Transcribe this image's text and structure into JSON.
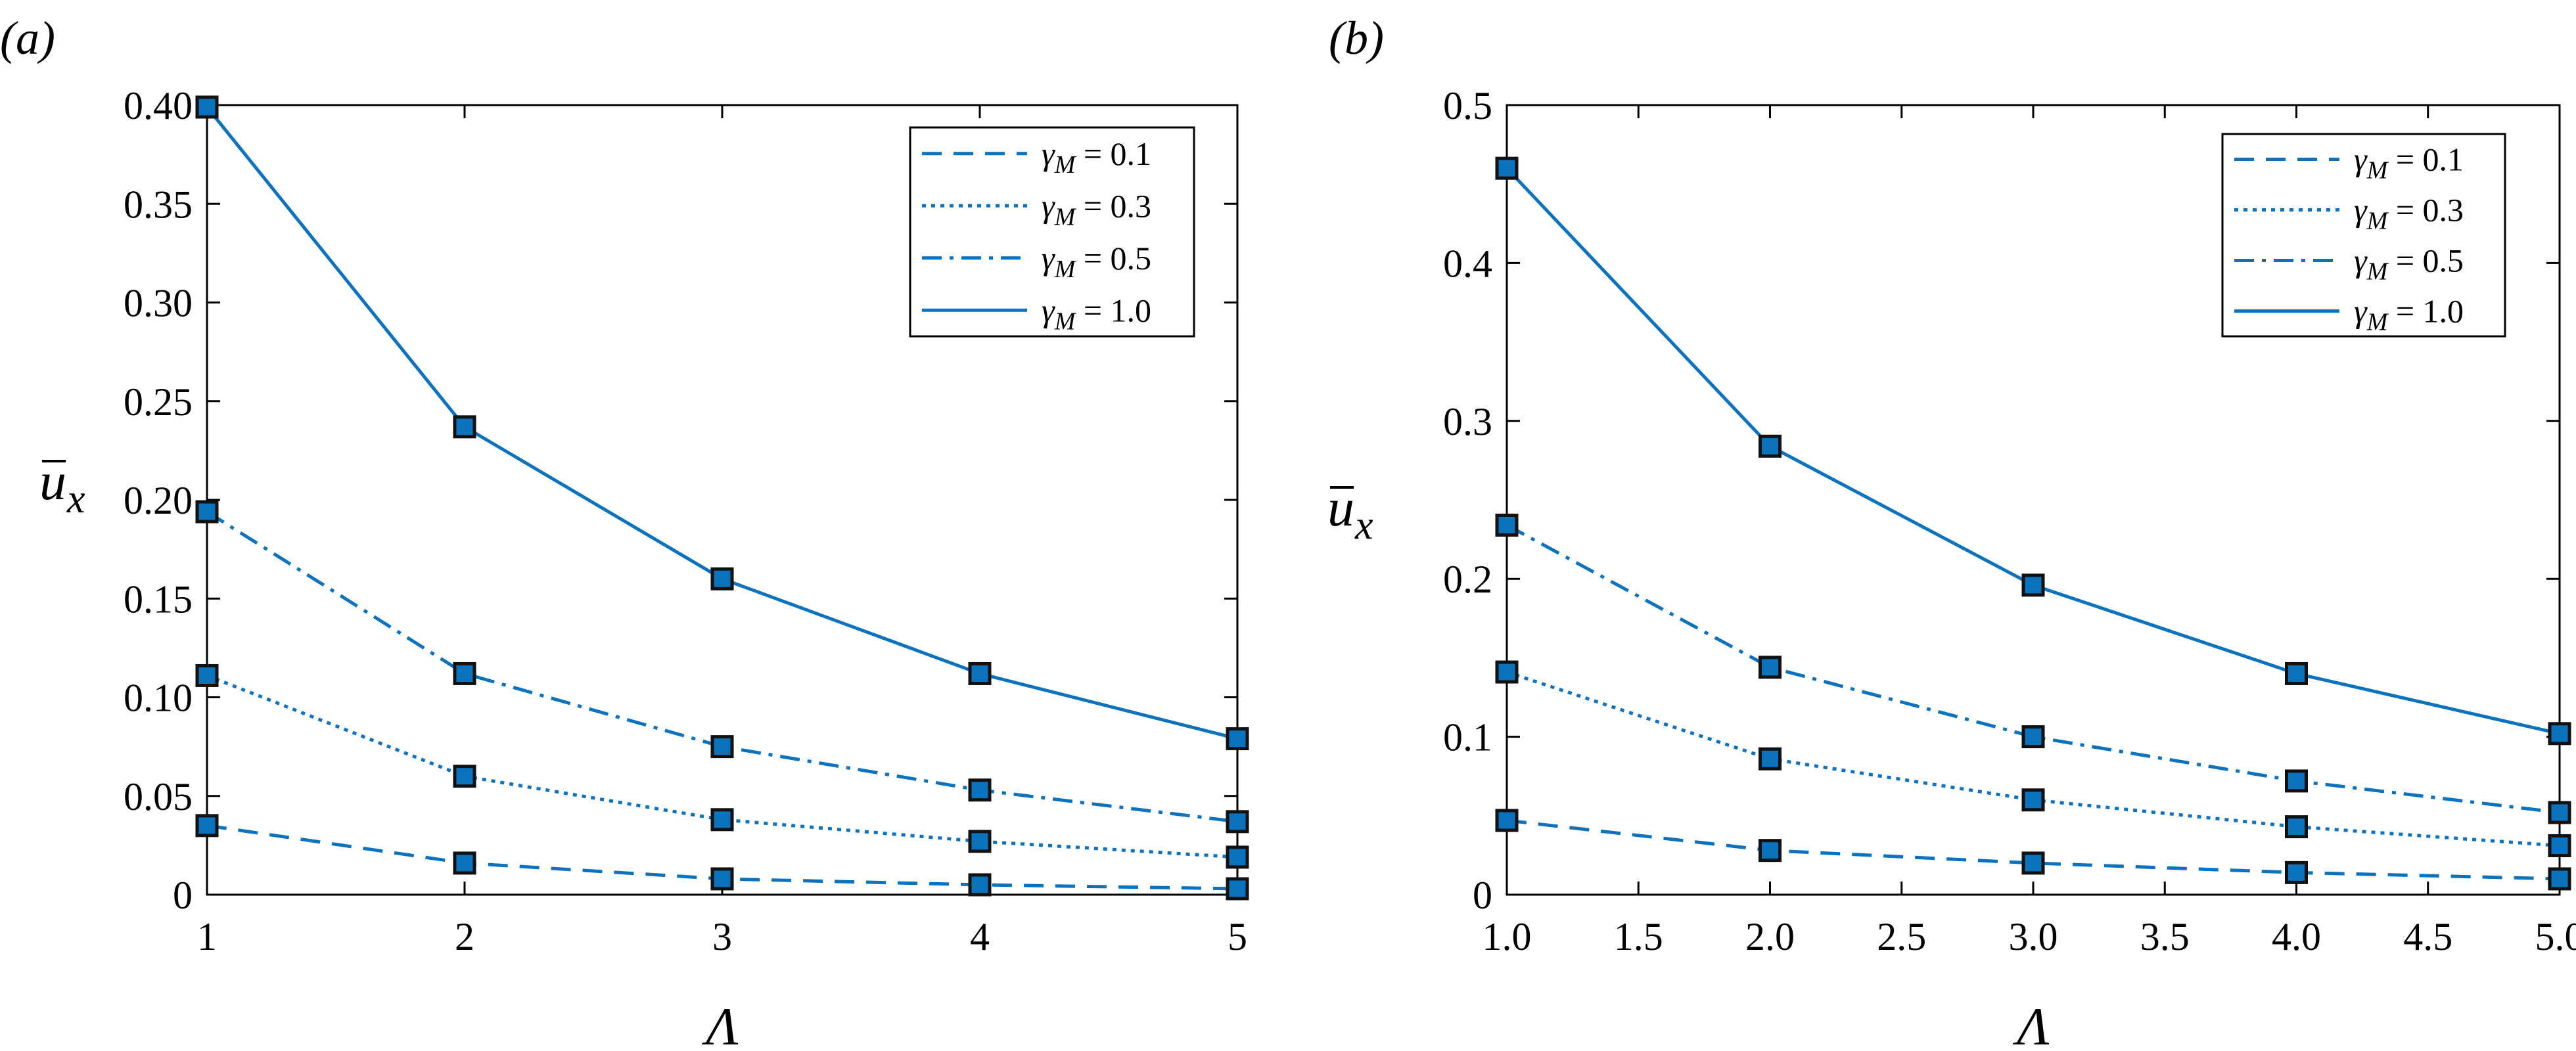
{
  "colors": {
    "series": "#0B72BD",
    "marker_fill": "#0B72BD",
    "marker_edge": "#111111",
    "axes": "#000000"
  },
  "panels": [
    {
      "panel_label": "(a)",
      "xlabel": "Λ",
      "ylabel_base": "u",
      "ylabel_sub": "x",
      "x_tick_labels": [
        "1",
        "2",
        "3",
        "4",
        "5"
      ],
      "y_tick_labels": [
        "0",
        "0.05",
        "0.10",
        "0.15",
        "0.20",
        "0.25",
        "0.30",
        "0.35",
        "0.40"
      ],
      "legend": [
        {
          "prefix": "γ",
          "sub": "M",
          "suffix": " = 0.1"
        },
        {
          "prefix": "γ",
          "sub": "M",
          "suffix": " = 0.3"
        },
        {
          "prefix": "γ",
          "sub": "M",
          "suffix": " = 0.5"
        },
        {
          "prefix": "γ",
          "sub": "M",
          "suffix": " = 1.0"
        }
      ]
    },
    {
      "panel_label": "(b)",
      "xlabel": "Λ",
      "ylabel_base": "u",
      "ylabel_sub": "x",
      "x_tick_labels": [
        "1.0",
        "1.5",
        "2.0",
        "2.5",
        "3.0",
        "3.5",
        "4.0",
        "4.5",
        "5.0"
      ],
      "y_tick_labels": [
        "0",
        "0.1",
        "0.2",
        "0.3",
        "0.4",
        "0.5"
      ],
      "legend": [
        {
          "prefix": "γ",
          "sub": "M",
          "suffix": " = 0.1"
        },
        {
          "prefix": "γ",
          "sub": "M",
          "suffix": " = 0.3"
        },
        {
          "prefix": "γ",
          "sub": "M",
          "suffix": " = 0.5"
        },
        {
          "prefix": "γ",
          "sub": "M",
          "suffix": " = 1.0"
        }
      ]
    }
  ],
  "chart_data": [
    {
      "type": "line",
      "title": "(a)",
      "xlabel": "Λ",
      "ylabel": "ū_x",
      "xlim": [
        1,
        5
      ],
      "ylim": [
        0,
        0.4
      ],
      "x_ticks": [
        1,
        2,
        3,
        4,
        5
      ],
      "y_ticks": [
        0,
        0.05,
        0.1,
        0.15,
        0.2,
        0.25,
        0.3,
        0.35,
        0.4
      ],
      "grid": false,
      "legend_position": "top-right",
      "x": [
        1,
        2,
        3,
        4,
        5
      ],
      "series": [
        {
          "name": "γM = 0.1",
          "line_style": "dashed",
          "marker": "square",
          "values": [
            0.035,
            0.016,
            0.008,
            0.005,
            0.003
          ]
        },
        {
          "name": "γM = 0.3",
          "line_style": "dotted",
          "marker": "square",
          "values": [
            0.111,
            0.06,
            0.038,
            0.027,
            0.019
          ]
        },
        {
          "name": "γM = 0.5",
          "line_style": "dashdot",
          "marker": "square",
          "values": [
            0.194,
            0.112,
            0.075,
            0.053,
            0.037
          ]
        },
        {
          "name": "γM = 1.0",
          "line_style": "solid",
          "marker": "square",
          "values": [
            0.399,
            0.237,
            0.16,
            0.112,
            0.079
          ]
        }
      ]
    },
    {
      "type": "line",
      "title": "(b)",
      "xlabel": "Λ",
      "ylabel": "ū_x",
      "xlim": [
        1,
        5
      ],
      "ylim": [
        0,
        0.5
      ],
      "x_ticks": [
        1.0,
        1.5,
        2.0,
        2.5,
        3.0,
        3.5,
        4.0,
        4.5,
        5.0
      ],
      "y_ticks": [
        0,
        0.1,
        0.2,
        0.3,
        0.4,
        0.5
      ],
      "grid": false,
      "legend_position": "top-right",
      "x": [
        1,
        2,
        3,
        4,
        5
      ],
      "series": [
        {
          "name": "γM = 0.1",
          "line_style": "dashed",
          "marker": "square",
          "values": [
            0.047,
            0.028,
            0.02,
            0.014,
            0.01
          ]
        },
        {
          "name": "γM = 0.3",
          "line_style": "dotted",
          "marker": "square",
          "values": [
            0.141,
            0.086,
            0.06,
            0.043,
            0.031
          ]
        },
        {
          "name": "γM = 0.5",
          "line_style": "dashdot",
          "marker": "square",
          "values": [
            0.234,
            0.144,
            0.1,
            0.072,
            0.052
          ]
        },
        {
          "name": "γM = 1.0",
          "line_style": "solid",
          "marker": "square",
          "values": [
            0.46,
            0.284,
            0.196,
            0.14,
            0.102
          ]
        }
      ]
    }
  ]
}
